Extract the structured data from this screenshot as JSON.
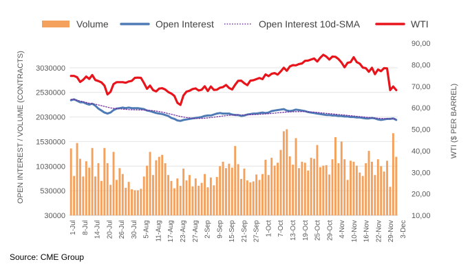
{
  "chart_data": {
    "type": "bar+line",
    "legend": [
      {
        "label": "Volume",
        "style": "bar",
        "color": "#f4a15d"
      },
      {
        "label": "Open Interest",
        "style": "line",
        "color": "#4e7ab5"
      },
      {
        "label": "Open Interest 10d-SMA",
        "style": "dotted-line",
        "color": "#7030a0"
      },
      {
        "label": "WTI",
        "style": "line",
        "color": "#e8141b"
      }
    ],
    "left_axis": {
      "label": "OPEN INTEREST / VOLUME (CONTRACTS)",
      "ylim": [
        30000,
        3530000
      ],
      "ticks": [
        "30000",
        "530000",
        "1030000",
        "1530000",
        "2030000",
        "2530000",
        "3030000"
      ],
      "tick_values": [
        30000,
        530000,
        1030000,
        1530000,
        2030000,
        2530000,
        3030000
      ]
    },
    "right_axis": {
      "label": "WTI ($ PER BARREL)",
      "ylim": [
        10,
        90
      ],
      "ticks": [
        "10,00",
        "20,00",
        "30,00",
        "40,00",
        "50,00",
        "60,00",
        "70,00",
        "80,00",
        "90,00"
      ],
      "tick_values": [
        10,
        20,
        30,
        40,
        50,
        60,
        70,
        80,
        90
      ]
    },
    "x_ticks": [
      "1-Jul",
      "8-Jul",
      "14-Jul",
      "20-Jul",
      "26-Jul",
      "30-Jul",
      "5-Aug",
      "11-Aug",
      "17-Aug",
      "23-Aug",
      "27-Aug",
      "2-Sep",
      "9-Sep",
      "15-Sep",
      "21-Sep",
      "27-Sep",
      "1-Oct",
      "7-Oct",
      "13-Oct",
      "19-Oct",
      "25-Oct",
      "29-Oct",
      "4-Nov",
      "10-Nov",
      "16-Nov",
      "22-Nov",
      "29-Nov",
      "3-Dec"
    ],
    "volume": [
      1390000,
      830000,
      1500000,
      1180000,
      820000,
      1130000,
      1000000,
      1400000,
      820000,
      1090000,
      730000,
      1400000,
      1090000,
      650000,
      1320000,
      750000,
      990000,
      870000,
      590000,
      710000,
      560000,
      540000,
      540000,
      570000,
      820000,
      1040000,
      1320000,
      850000,
      1150000,
      1220000,
      1260000,
      1090000,
      850000,
      730000,
      580000,
      780000,
      630000,
      980000,
      740000,
      850000,
      620000,
      780000,
      630000,
      690000,
      870000,
      600000,
      800000,
      640000,
      810000,
      1030000,
      1120000,
      990000,
      1080000,
      1000000,
      1440000,
      1070000,
      770000,
      980000,
      740000,
      700000,
      720000,
      860000,
      750000,
      870000,
      1160000,
      850000,
      1200000,
      1040000,
      1100000,
      1360000,
      1740000,
      1780000,
      1230000,
      1060000,
      1600000,
      990000,
      1120000,
      1100000,
      940000,
      1200000,
      1180000,
      1460000,
      1010000,
      1040000,
      1050000,
      860000,
      1170000,
      1620000,
      1090000,
      1530000,
      1170000,
      750000,
      1140000,
      1120000,
      1040000,
      900000,
      830000,
      1090000,
      1340000,
      1120000,
      850000,
      1170000,
      1030000,
      920000,
      1140000,
      610000,
      1700000,
      1220000
    ],
    "wti": [
      74.8,
      74.8,
      74.2,
      72.0,
      73.0,
      74.5,
      73.4,
      75.2,
      72.9,
      72.4,
      71.8,
      70.3,
      66.2,
      67.4,
      71.0,
      71.9,
      71.9,
      71.9,
      71.6,
      72.2,
      72.5,
      73.9,
      74.0,
      73.9,
      71.5,
      68.8,
      70.3,
      68.2,
      67.6,
      68.9,
      69.1,
      68.5,
      67.3,
      66.6,
      65.5,
      62.3,
      61.3,
      65.7,
      67.5,
      67.9,
      68.7,
      69.0,
      68.0,
      68.4,
      70.0,
      67.8,
      69.9,
      68.3,
      68.4,
      69.3,
      69.6,
      70.6,
      69.2,
      68.5,
      70.7,
      72.5,
      72.6,
      71.4,
      70.5,
      72.6,
      72.8,
      73.3,
      73.8,
      73.3,
      75.5,
      74.7,
      75.8,
      76.1,
      75.4,
      76.9,
      78.6,
      77.2,
      79.2,
      79.8,
      79.7,
      80.3,
      80.6,
      81.8,
      81.9,
      82.4,
      82.9,
      81.5,
      83.2,
      84.6,
      83.8,
      82.4,
      83.8,
      83.7,
      82.6,
      81.0,
      78.8,
      80.9,
      81.2,
      83.5,
      81.2,
      80.5,
      78.7,
      78.4,
      76.7,
      78.6,
      75.6,
      77.8,
      77.0,
      78.4,
      78.3,
      68.2,
      69.9,
      68.2
    ],
    "open_interest": [
      2370000,
      2390000,
      2360000,
      2330000,
      2330000,
      2300000,
      2280000,
      2300000,
      2260000,
      2200000,
      2160000,
      2120000,
      2100000,
      2120000,
      2170000,
      2200000,
      2210000,
      2220000,
      2210000,
      2220000,
      2210000,
      2210000,
      2210000,
      2200000,
      2190000,
      2160000,
      2150000,
      2130000,
      2110000,
      2100000,
      2090000,
      2070000,
      2050000,
      2010000,
      1990000,
      1960000,
      1950000,
      1970000,
      1980000,
      1990000,
      2000000,
      2010000,
      2020000,
      2030000,
      2050000,
      2060000,
      2060000,
      2080000,
      2100000,
      2110000,
      2100000,
      2100000,
      2100000,
      2080000,
      2070000,
      2070000,
      2050000,
      2060000,
      2080000,
      2090000,
      2100000,
      2100000,
      2110000,
      2120000,
      2110000,
      2120000,
      2150000,
      2160000,
      2170000,
      2180000,
      2190000,
      2160000,
      2150000,
      2160000,
      2180000,
      2170000,
      2160000,
      2150000,
      2130000,
      2120000,
      2110000,
      2100000,
      2090000,
      2080000,
      2070000,
      2070000,
      2060000,
      2060000,
      2050000,
      2050000,
      2040000,
      2040000,
      2030000,
      2030000,
      2020000,
      2020000,
      2010000,
      2000000,
      2000000,
      2010000,
      2000000,
      1980000,
      1970000,
      1980000,
      1990000,
      1990000,
      2000000,
      1970000
    ],
    "open_interest_sma": [
      2390000,
      2385000,
      2370000,
      2355000,
      2340000,
      2325000,
      2310000,
      2300000,
      2290000,
      2275000,
      2260000,
      2245000,
      2230000,
      2215000,
      2205000,
      2200000,
      2195000,
      2190000,
      2185000,
      2180000,
      2178000,
      2176000,
      2174000,
      2172000,
      2170000,
      2168000,
      2164000,
      2158000,
      2150000,
      2140000,
      2128000,
      2114000,
      2100000,
      2085000,
      2070000,
      2055000,
      2040000,
      2028000,
      2018000,
      2012000,
      2006000,
      2000000,
      2000000,
      2002000,
      2006000,
      2012000,
      2018000,
      2026000,
      2034000,
      2042000,
      2050000,
      2058000,
      2064000,
      2068000,
      2070000,
      2072000,
      2072000,
      2072000,
      2074000,
      2076000,
      2078000,
      2080000,
      2084000,
      2088000,
      2092000,
      2096000,
      2102000,
      2108000,
      2114000,
      2120000,
      2126000,
      2130000,
      2134000,
      2136000,
      2138000,
      2139000,
      2140000,
      2138000,
      2136000,
      2132000,
      2128000,
      2122000,
      2116000,
      2110000,
      2104000,
      2098000,
      2092000,
      2086000,
      2080000,
      2074000,
      2068000,
      2062000,
      2056000,
      2050000,
      2044000,
      2038000,
      2032000,
      2026000,
      2020000,
      2014000,
      2008000,
      2004000,
      2000000,
      1998000,
      1996000,
      1994000,
      1992000,
      1990000
    ]
  },
  "source": "Source: CME Group"
}
